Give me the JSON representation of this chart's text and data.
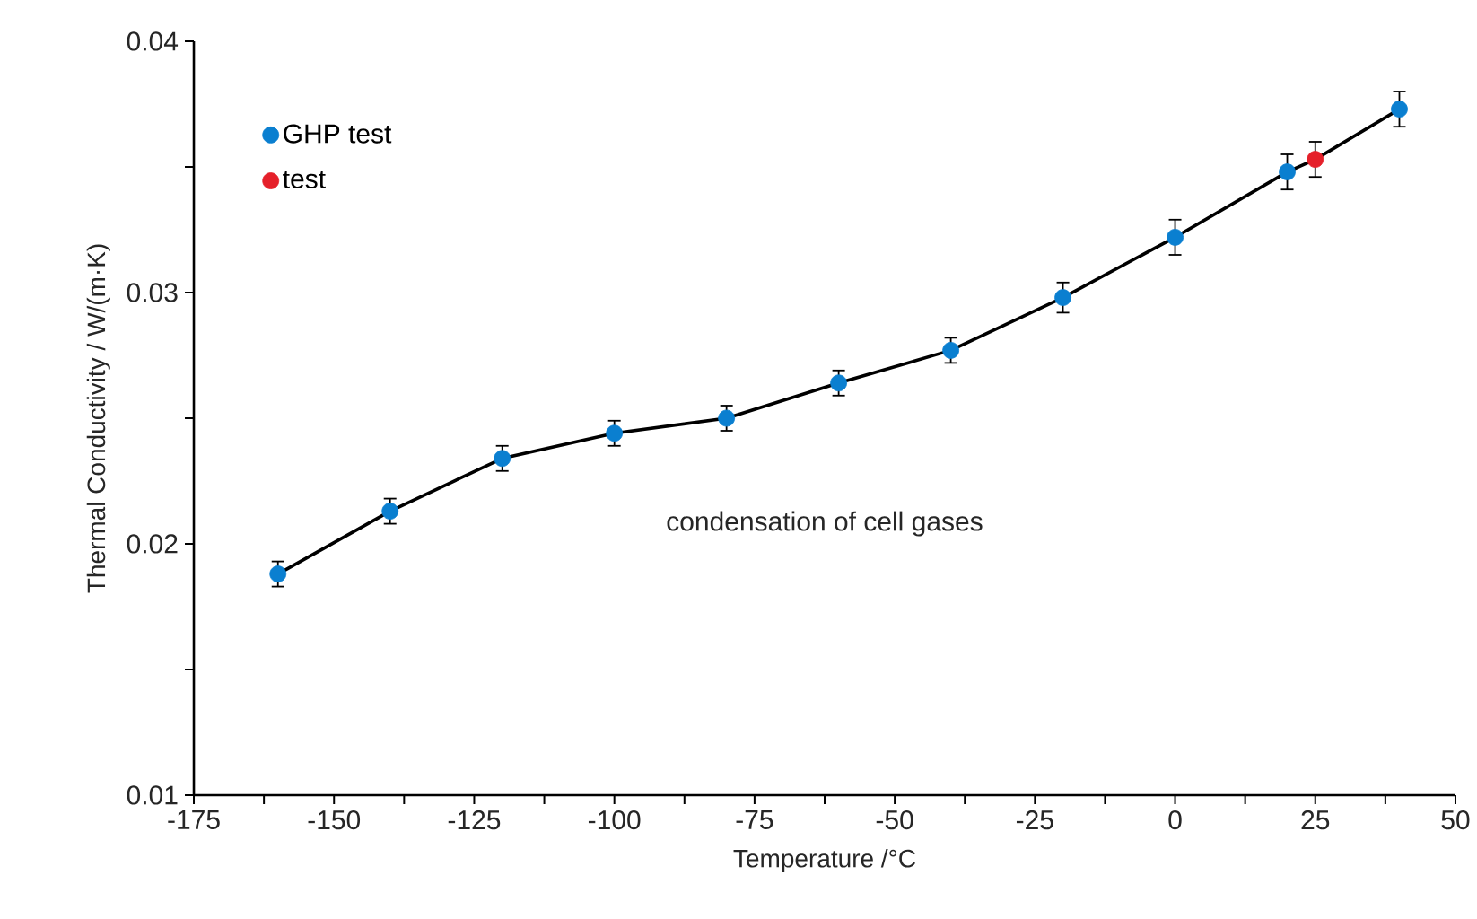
{
  "chart_data": {
    "type": "scatter",
    "xlabel": "Temperature /°C",
    "ylabel": "Thermal Conductivity / W/(m·K)",
    "xlim": [
      -175,
      50
    ],
    "ylim": [
      0.01,
      0.04
    ],
    "xticks": [
      -175,
      {
        "value": -162.5,
        "label": null
      },
      -150,
      {
        "value": -137.5,
        "label": null
      },
      -125,
      {
        "value": -112.5,
        "label": null
      },
      -100,
      {
        "value": -87.5,
        "label": null
      },
      -75,
      {
        "value": -62.5,
        "label": null
      },
      -50,
      {
        "value": -37.5,
        "label": null
      },
      -25,
      {
        "value": -12.5,
        "label": null
      },
      0,
      {
        "value": 12.5,
        "label": null
      },
      25,
      {
        "value": 37.5,
        "label": null
      },
      50
    ],
    "yticks": [
      0.01,
      {
        "value": 0.015,
        "label": null
      },
      0.02,
      {
        "value": 0.025,
        "label": null
      },
      0.03,
      {
        "value": 0.035,
        "label": null
      },
      0.04
    ],
    "grid": false,
    "legend": "top left",
    "marker": "circle",
    "annotations": [
      "condensation of cell gases"
    ],
    "series": [
      {
        "type": "line",
        "color": "#000000",
        "marker": "none",
        "x": [
          -160,
          -140,
          -120,
          -100,
          -80,
          -60,
          -40,
          -20,
          0,
          20,
          25,
          40
        ],
        "values": [
          0.0188,
          0.0213,
          0.0234,
          0.0244,
          0.025,
          0.0264,
          0.0277,
          0.0298,
          0.0322,
          0.0348,
          0.0353,
          0.0373
        ]
      },
      {
        "name": "GHP test",
        "color": "#0a7fd0",
        "x": [
          -160,
          -140,
          -120,
          -100,
          -80,
          -60,
          -40,
          -20,
          0,
          20,
          40
        ],
        "values": [
          0.0188,
          0.0213,
          0.0234,
          0.0244,
          0.025,
          0.0264,
          0.0277,
          0.0298,
          0.0322,
          0.0348,
          0.0373
        ],
        "errors": [
          0.0005,
          0.0005,
          0.0005,
          0.0005,
          0.0005,
          0.0005,
          0.0005,
          0.0006,
          0.0007,
          0.0007,
          0.0007
        ]
      },
      {
        "name": "test",
        "color": "#e5202a",
        "x": [
          25
        ],
        "values": [
          0.0353
        ],
        "errors": [
          0.0007
        ]
      }
    ]
  }
}
